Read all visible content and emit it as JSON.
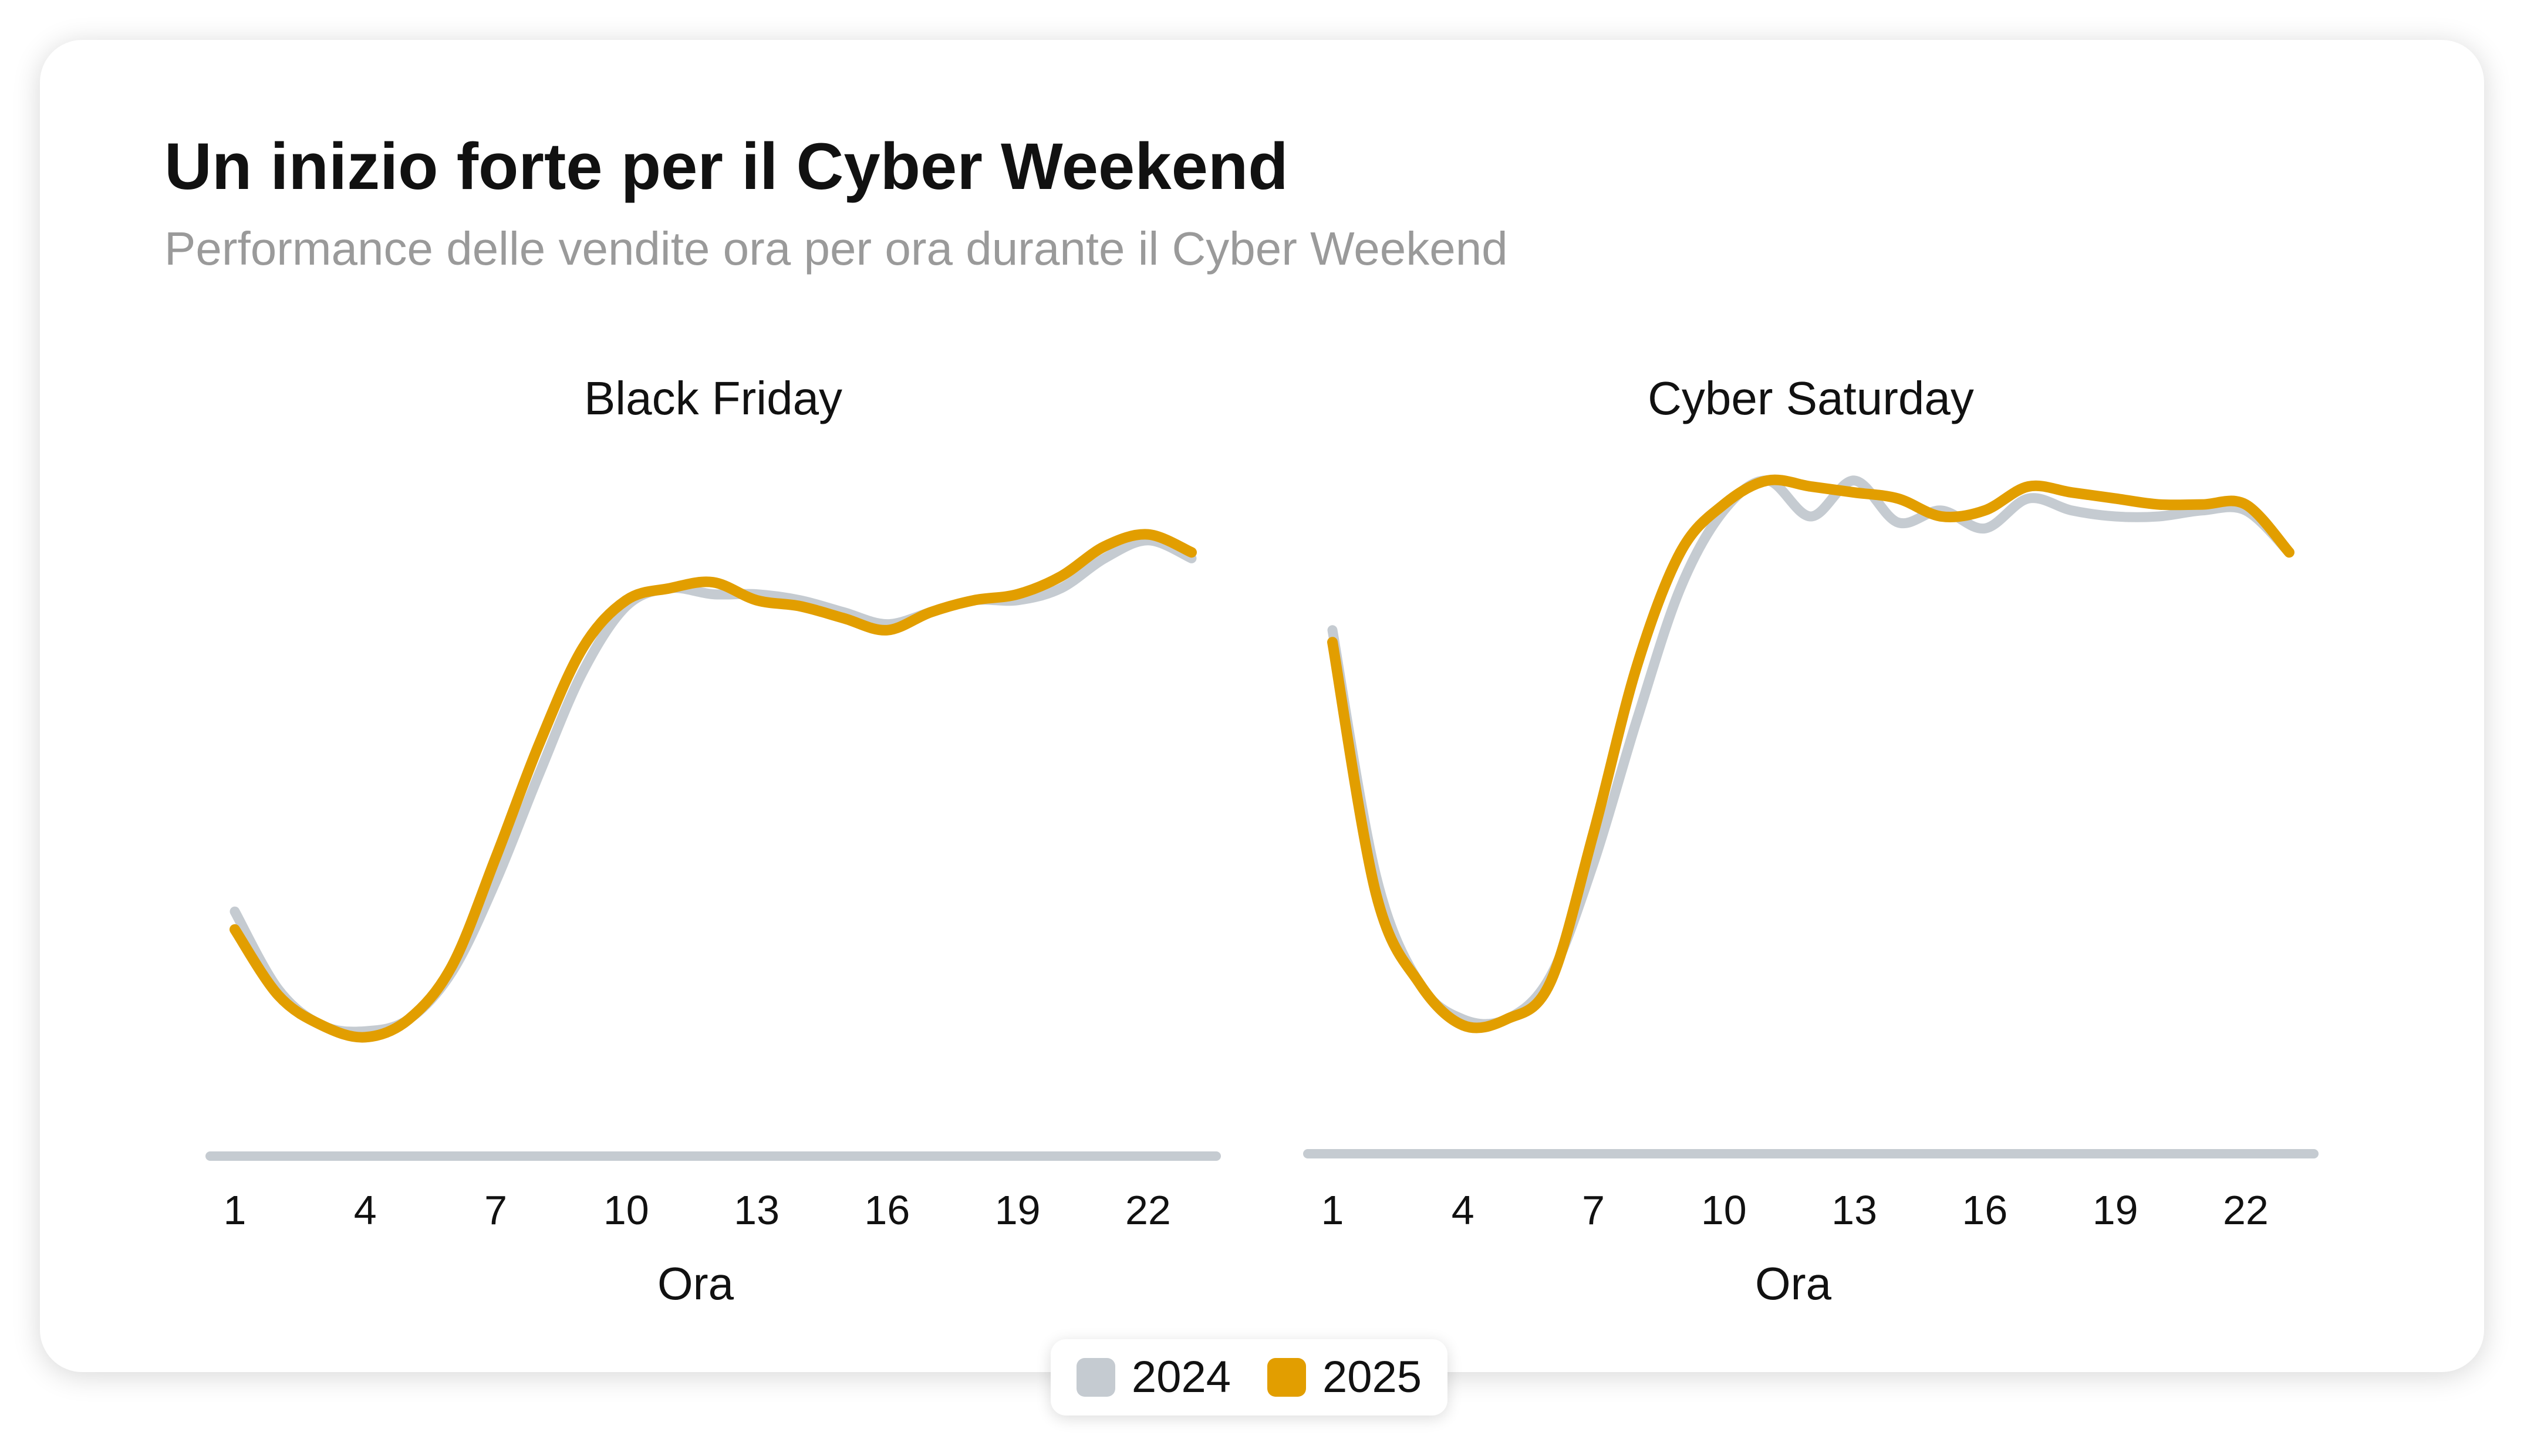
{
  "title": "Un inizio forte per il Cyber Weekend",
  "subtitle": "Performance delle vendite ora per ora durante il Cyber Weekend",
  "colors": {
    "2024": "#c5cbd1",
    "2025": "#e29e00",
    "axis": "#c5cbd1"
  },
  "legend": [
    {
      "label": "2024",
      "color": "#c5cbd1"
    },
    {
      "label": "2025",
      "color": "#e29e00"
    }
  ],
  "chart_data": [
    {
      "type": "line",
      "title": "Black Friday",
      "xlabel": "Ora",
      "ylabel": "",
      "x": [
        1,
        2,
        3,
        4,
        5,
        6,
        7,
        8,
        9,
        10,
        11,
        12,
        13,
        14,
        15,
        16,
        17,
        18,
        19,
        20,
        21,
        22,
        23
      ],
      "xticks": [
        1,
        4,
        7,
        10,
        13,
        16,
        19,
        22
      ],
      "ylim": [
        0,
        100
      ],
      "grid": false,
      "legend_position": "bottom",
      "series": [
        {
          "name": "2024",
          "values": [
            34,
            21,
            15,
            14,
            16,
            24,
            39,
            57,
            74,
            85,
            88,
            87,
            87,
            86,
            84,
            82,
            84,
            86,
            86,
            88,
            93,
            96,
            93
          ]
        },
        {
          "name": "2025",
          "values": [
            31,
            20,
            15,
            13,
            16,
            25,
            43,
            62,
            78,
            86,
            88,
            89,
            86,
            85,
            83,
            81,
            84,
            86,
            87,
            90,
            95,
            97,
            94
          ]
        }
      ]
    },
    {
      "type": "line",
      "title": "Cyber Saturday",
      "xlabel": "Ora",
      "ylabel": "",
      "x": [
        1,
        2,
        3,
        4,
        5,
        6,
        7,
        8,
        9,
        10,
        11,
        12,
        13,
        14,
        15,
        16,
        17,
        18,
        19,
        20,
        21,
        22,
        23
      ],
      "xticks": [
        1,
        4,
        7,
        10,
        13,
        16,
        19,
        22
      ],
      "ylim": [
        0,
        100
      ],
      "grid": false,
      "legend_position": "bottom",
      "series": [
        {
          "name": "2024",
          "values": [
            81,
            40,
            22,
            16,
            16,
            23,
            42,
            66,
            88,
            101,
            106,
            100,
            106,
            99,
            101,
            98,
            103,
            101,
            100,
            100,
            101,
            101,
            94
          ]
        },
        {
          "name": "2025",
          "values": [
            79,
            37,
            22,
            15,
            16,
            22,
            47,
            75,
            94,
            102,
            106,
            105,
            104,
            103,
            100,
            101,
            105,
            104,
            103,
            102,
            102,
            102,
            94
          ]
        }
      ]
    }
  ]
}
